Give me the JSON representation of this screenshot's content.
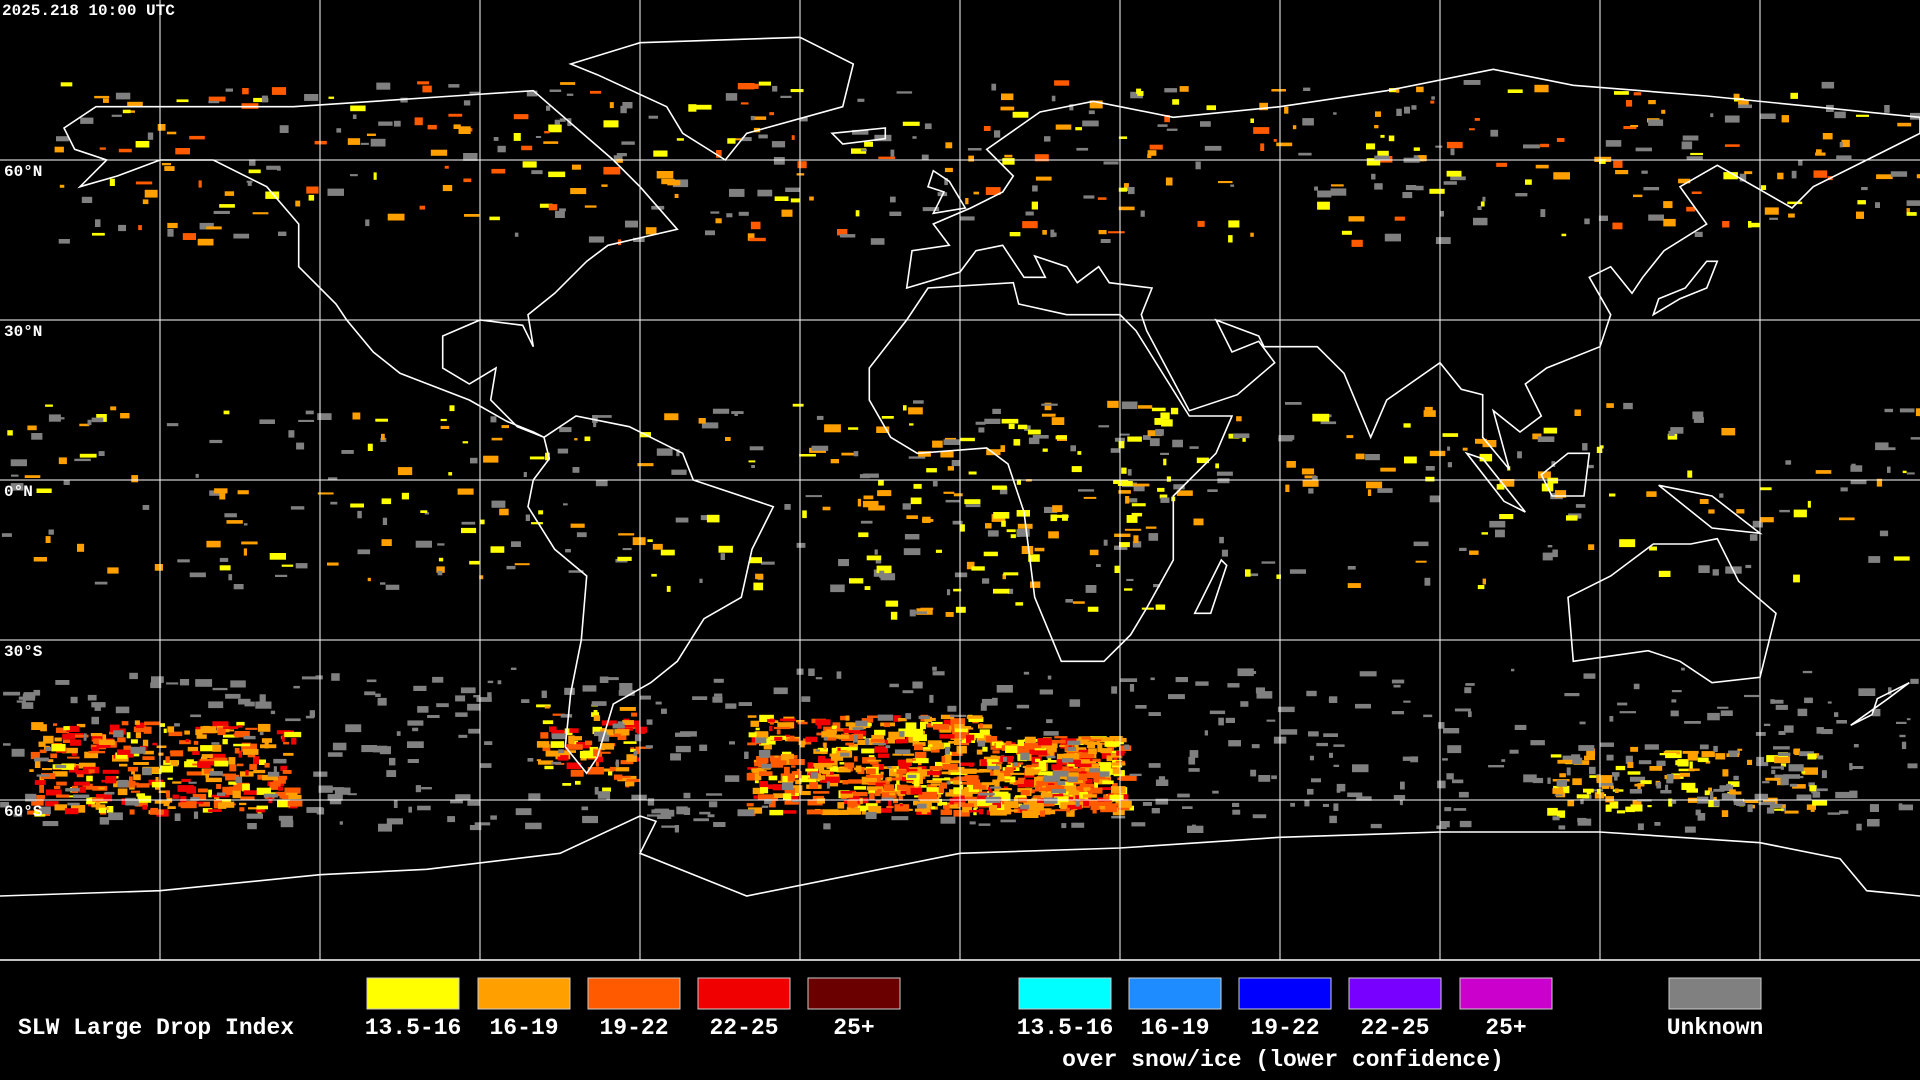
{
  "timestamp": "2025.218 10:00 UTC",
  "map": {
    "latitude_labels": [
      "60°N",
      "30°N",
      "0°N",
      "30°S",
      "60°S"
    ]
  },
  "legend": {
    "title": "SLW Large Drop Index",
    "items": [
      {
        "label": "13.5-16",
        "color": "#ffff00"
      },
      {
        "label": "16-19",
        "color": "#ffa000"
      },
      {
        "label": "19-22",
        "color": "#ff5a00"
      },
      {
        "label": "22-25",
        "color": "#f00000"
      },
      {
        "label": "25+",
        "color": "#6a0000"
      }
    ],
    "snow_ice_items": [
      {
        "label": "13.5-16",
        "color": "#00ffff"
      },
      {
        "label": "16-19",
        "color": "#1e8cff"
      },
      {
        "label": "19-22",
        "color": "#0000ff"
      },
      {
        "label": "22-25",
        "color": "#7800ff"
      },
      {
        "label": "25+",
        "color": "#cc00cc"
      }
    ],
    "snow_ice_note": "over snow/ice (lower confidence)",
    "unknown": {
      "label": "Unknown",
      "color": "#808080"
    }
  }
}
